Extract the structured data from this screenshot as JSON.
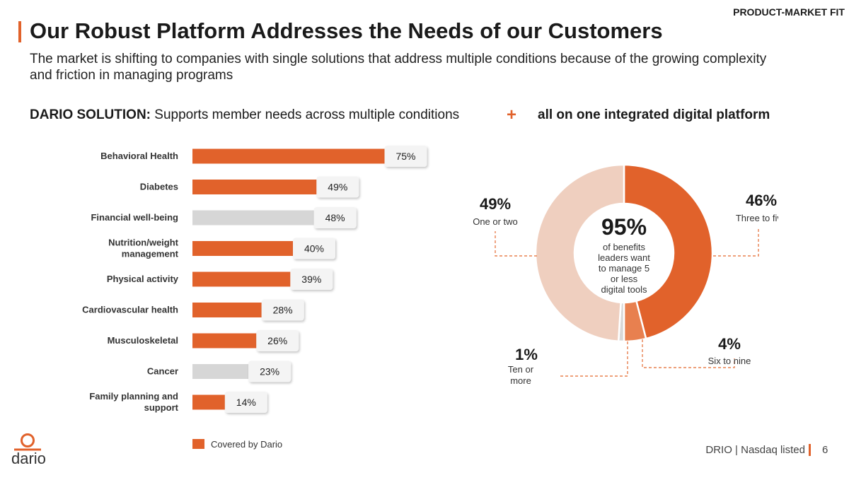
{
  "header": {
    "section_tag": "PRODUCT-MARKET FIT",
    "title": "Our Robust Platform Addresses the Needs of our Customers",
    "subtitle": "The market is shifting to companies with single solutions that address multiple conditions because of the growing complexity and friction in managing programs"
  },
  "solution": {
    "label": "DARIO SOLUTION:",
    "text": "Supports member needs across multiple conditions",
    "plus": "+",
    "right": "all on one integrated digital platform"
  },
  "footer": {
    "text": "DRIO | Nasdaq listed",
    "page": "6",
    "logo_text": "dario"
  },
  "colors": {
    "accent": "#e1622b",
    "grey_bar": "#d6d6d6",
    "donut_light": "#efcfbf",
    "donut_mid": "#e8804f"
  },
  "chart_data": [
    {
      "type": "bar",
      "orientation": "horizontal",
      "categories": [
        [
          "Behavioral Health"
        ],
        [
          "Diabetes"
        ],
        [
          "Financial well-being"
        ],
        [
          "Nutrition/weight",
          "management"
        ],
        [
          "Physical activity"
        ],
        [
          "Cardiovascular health"
        ],
        [
          "Musculoskeletal"
        ],
        [
          "Cancer"
        ],
        [
          "Family planning and",
          "support"
        ]
      ],
      "values": [
        75,
        49,
        48,
        40,
        39,
        28,
        26,
        23,
        14
      ],
      "labels": [
        "75%",
        "49%",
        "48%",
        "40%",
        "39%",
        "28%",
        "26%",
        "23%",
        "14%"
      ],
      "covered_by_dario": [
        true,
        true,
        false,
        true,
        true,
        true,
        true,
        false,
        true
      ],
      "legend": "Covered by Dario",
      "xlim": [
        0,
        100
      ]
    },
    {
      "type": "pie",
      "style": "donut",
      "center_value": "95%",
      "center_text": [
        "of benefits",
        "leaders want",
        "to manage 5",
        "or less",
        "digital tools"
      ],
      "slices": [
        {
          "label": "Three to five",
          "value": 46,
          "display": "46%"
        },
        {
          "label": "Six to nine",
          "value": 4,
          "display": "4%"
        },
        {
          "label": "Ten or more",
          "label_lines": [
            "Ten or",
            "more"
          ],
          "value": 1,
          "display": "1%"
        },
        {
          "label": "One or two",
          "value": 49,
          "display": "49%"
        }
      ]
    }
  ]
}
